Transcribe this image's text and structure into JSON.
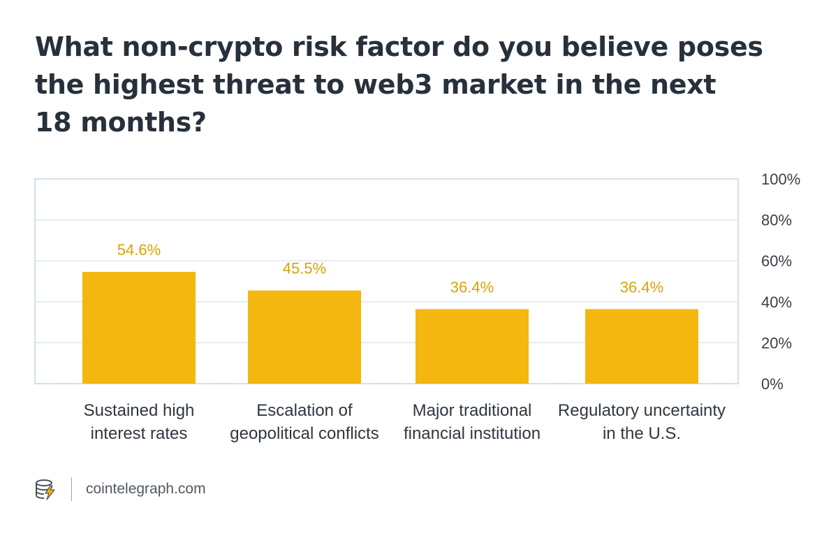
{
  "title_lines": [
    "What non-crypto risk factor do you believe poses",
    "the highest threat to web3 market in the next",
    "18 months?"
  ],
  "chart_data": {
    "type": "bar",
    "title": "What non-crypto risk factor do you believe poses the highest threat to web3 market in the next 18 months?",
    "categories": [
      [
        "Sustained high",
        "interest rates"
      ],
      [
        "Escalation of",
        "geopolitical conflicts"
      ],
      [
        "Major traditional",
        "financial institution"
      ],
      [
        "Regulatory uncertainty",
        "in the U.S."
      ]
    ],
    "values": [
      54.6,
      45.5,
      36.4,
      36.4
    ],
    "value_labels": [
      "54.6%",
      "45.5%",
      "36.4%",
      "36.4%"
    ],
    "ylim": [
      0,
      100
    ],
    "yticks": [
      0,
      20,
      40,
      60,
      80,
      100
    ],
    "ytick_labels": [
      "0%",
      "20%",
      "40%",
      "60%",
      "80%",
      "100%"
    ],
    "y_axis_side": "right",
    "grid": true,
    "xlabel": "",
    "ylabel": ""
  },
  "colors": {
    "bar": "#f3b70f",
    "value_label": "#d7a307",
    "grid": "#dce6ef",
    "frame": "#d3e1ec"
  },
  "footer": {
    "site": "cointelegraph.com",
    "logo_icon": "cointelegraph-logo-icon"
  }
}
